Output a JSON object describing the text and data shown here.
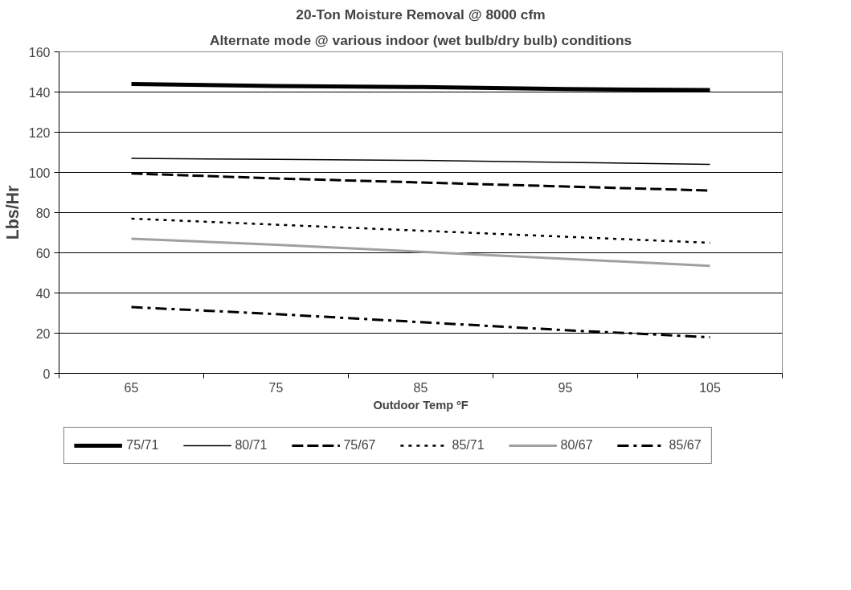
{
  "chart_data": {
    "type": "line",
    "title": "20-Ton Moisture Removal @ 8000 cfm",
    "subtitle": "Alternate mode @ various indoor (wet bulb/dry bulb) conditions",
    "xlabel": "Outdoor Temp ºF",
    "ylabel": "Lbs/Hr",
    "categories": [
      "65",
      "75",
      "85",
      "95",
      "105"
    ],
    "ylim": [
      0,
      160
    ],
    "yticks": [
      0,
      20,
      40,
      60,
      80,
      100,
      120,
      140,
      160
    ],
    "grid": "y",
    "legend": "bottom",
    "marker": "none",
    "series": [
      {
        "name": "75/71",
        "color": "#000000",
        "line_style": "solid",
        "values": [
          144,
          143,
          142.5,
          141.5,
          141
        ]
      },
      {
        "name": "80/71",
        "color": "#000000",
        "line_style": "solid",
        "values": [
          107,
          106.5,
          106,
          105,
          104
        ]
      },
      {
        "name": "75/67",
        "color": "#000000",
        "line_style": "dashed",
        "values": [
          99.5,
          97,
          95,
          93,
          91
        ]
      },
      {
        "name": "85/71",
        "color": "#000000",
        "line_style": "dotted",
        "values": [
          77,
          74,
          71,
          68,
          65
        ]
      },
      {
        "name": "80/67",
        "color": "#a0a0a0",
        "line_style": "solid",
        "values": [
          67,
          64,
          60.5,
          57,
          53.5
        ]
      },
      {
        "name": "85/67",
        "color": "#000000",
        "line_style": "dashdot",
        "values": [
          33,
          29.5,
          25.5,
          21.5,
          18
        ]
      }
    ]
  }
}
